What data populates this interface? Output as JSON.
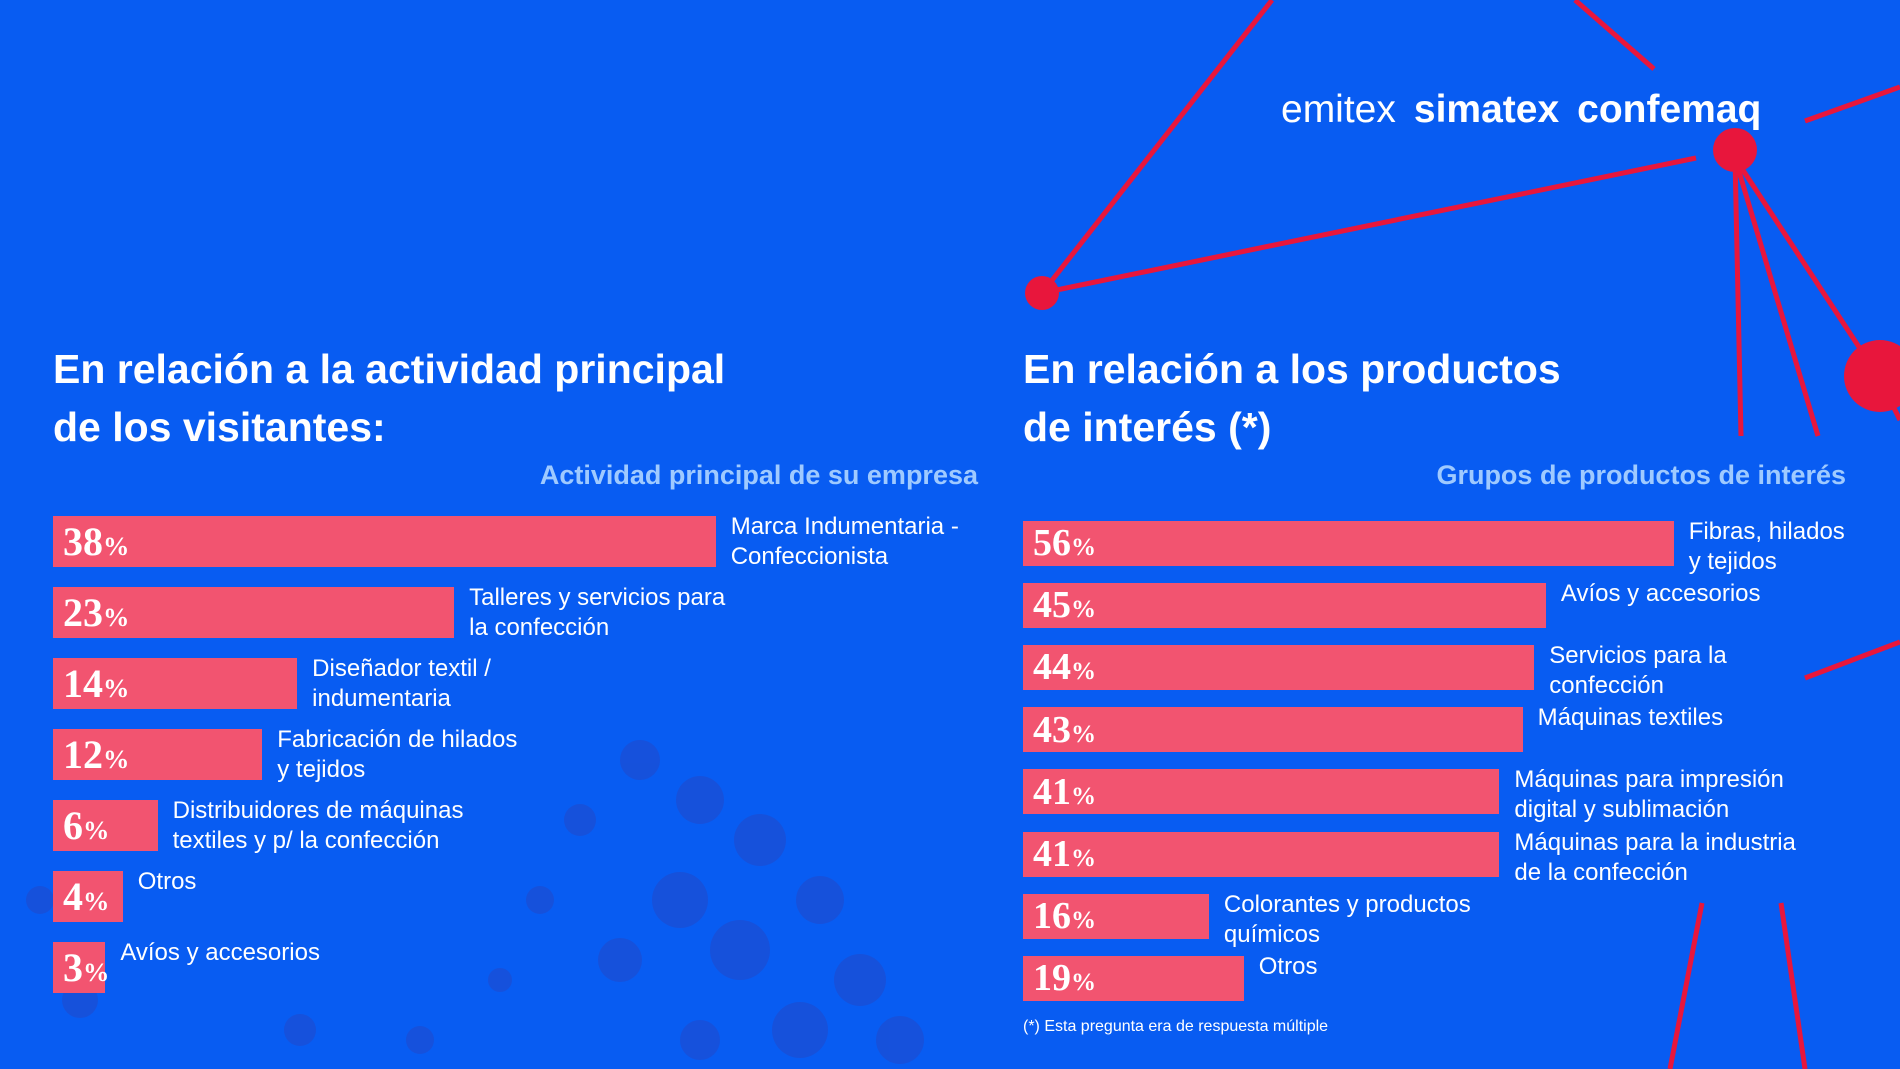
{
  "logo": [
    "emitex",
    "simatex",
    "confemaq"
  ],
  "chart_data": [
    {
      "type": "bar",
      "title": "En relación a la actividad principal\nde los visitantes:",
      "subtitle": "Actividad principal de su empresa",
      "categories": [
        "Marca Indumentaria -\nConfeccionista",
        "Talleres y servicios para\nla confección",
        "Diseñador textil /\nindumentaria",
        "Fabricación de hilados\ny tejidos",
        "Distribuidores de máquinas\ntextiles y p/ la confección",
        "Otros",
        "Avíos y accesorios"
      ],
      "values": [
        38,
        23,
        14,
        12,
        6,
        4,
        3
      ],
      "value_labels": [
        "38%",
        "23%",
        "14%",
        "12%",
        "6%",
        "4%",
        "3%"
      ],
      "color": "#f25470"
    },
    {
      "type": "bar",
      "title": "En relación a los productos\nde interés (*)",
      "subtitle": "Grupos de productos de interés",
      "categories": [
        "Fibras, hilados\ny tejidos",
        "Avíos y accesorios",
        "Servicios para la\nconfección",
        "Máquinas textiles",
        "Máquinas para impresión\ndigital y sublimación",
        "Máquinas para la industria\nde la confección",
        "Colorantes y productos\nquímicos",
        "Otros"
      ],
      "values": [
        56,
        45,
        44,
        43,
        41,
        41,
        16,
        19
      ],
      "value_labels": [
        "56%",
        "45%",
        "44%",
        "43%",
        "41%",
        "41%",
        "16%",
        "19%"
      ],
      "color": "#f25470"
    }
  ],
  "footnote": "(*) Esta pregunta era de respuesta múltiple"
}
